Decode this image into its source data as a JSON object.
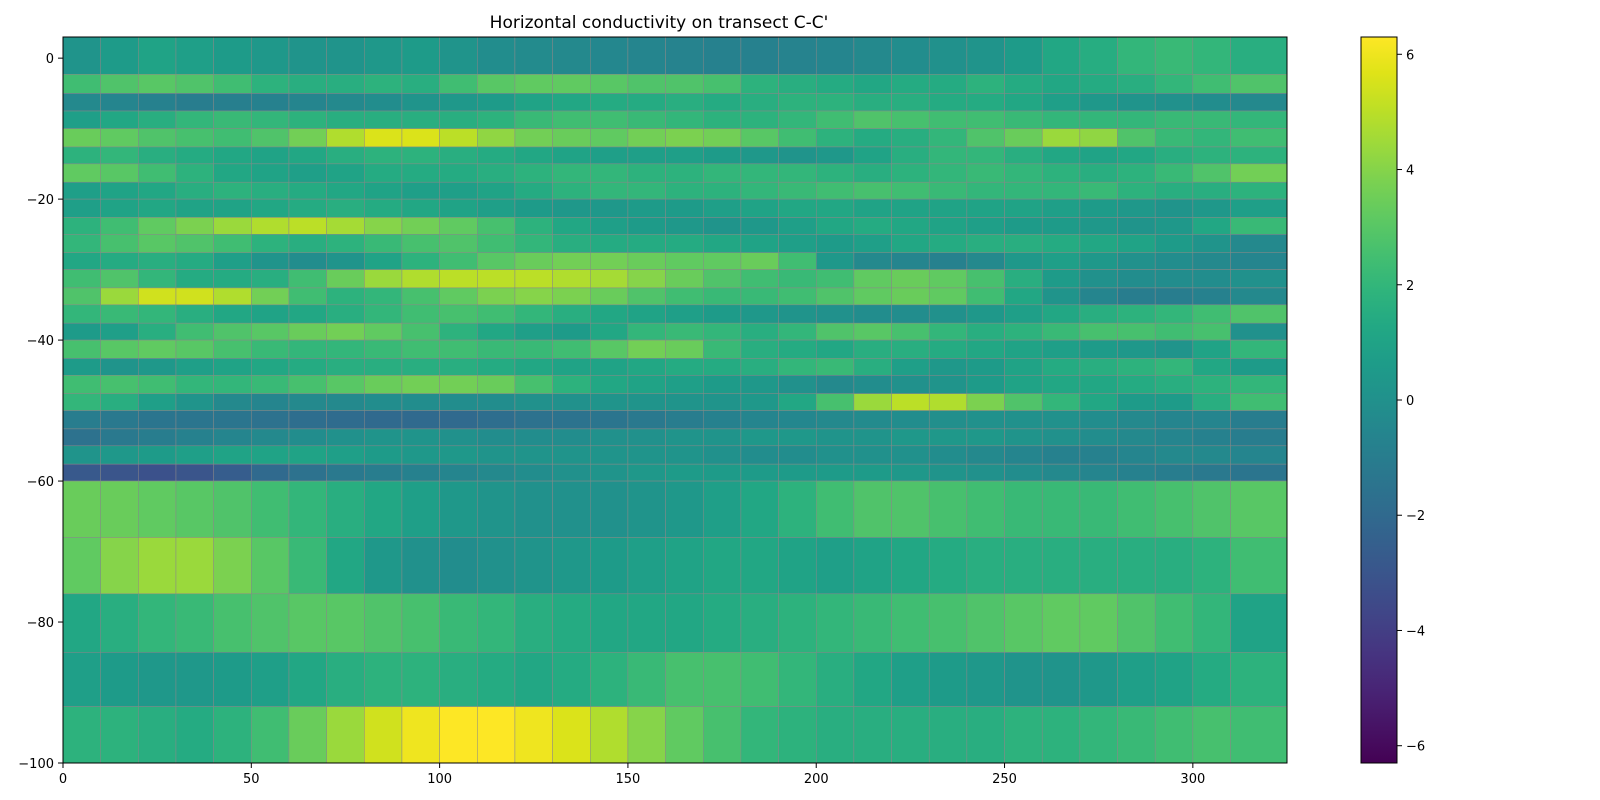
{
  "chart_data": {
    "type": "heatmap",
    "title": "Horizontal conductivity on transect C-C'",
    "xlabel": "",
    "ylabel": "",
    "xlim": [
      0,
      325
    ],
    "ylim": [
      -100,
      3
    ],
    "x_ticks": [
      0,
      50,
      100,
      150,
      200,
      250,
      300
    ],
    "y_ticks": [
      0,
      -20,
      -40,
      -60,
      -80,
      -100
    ],
    "x_edges": [
      0,
      10,
      20,
      30,
      40,
      50,
      60,
      70,
      80,
      90,
      100,
      110,
      120,
      130,
      140,
      150,
      160,
      170,
      180,
      190,
      200,
      210,
      220,
      230,
      240,
      250,
      260,
      270,
      280,
      290,
      300,
      310,
      325
    ],
    "layer_edges": [
      3,
      -2.3,
      -5,
      -7.5,
      -10,
      -12.6,
      -15,
      -17.6,
      -20,
      -22.6,
      -25,
      -27.6,
      -30,
      -32.6,
      -35,
      -37.6,
      -40,
      -42.6,
      -45,
      -47.6,
      -50,
      -52.6,
      -55,
      -57.6,
      -60,
      -68,
      -76,
      -84.3,
      -92,
      -100
    ],
    "colorbar": {
      "colormap": "viridis",
      "vmin": -6.3,
      "vmax": 6.3,
      "ticks": [
        6,
        4,
        2,
        0,
        -2,
        -4,
        -6
      ],
      "tick_labels": [
        "6",
        "4",
        "2",
        "0",
        "−2",
        "−4",
        "−6"
      ]
    },
    "grid_color": "#888888",
    "values": [
      [
        0.2,
        0.6,
        1.0,
        0.8,
        0.6,
        0.4,
        0.2,
        0.2,
        0.4,
        0.6,
        0.2,
        -0.2,
        -0.3,
        -0.4,
        -0.5,
        -0.6,
        -0.7,
        -0.8,
        -0.8,
        -0.7,
        -0.6,
        -0.4,
        -0.2,
        0.0,
        0.2,
        0.6,
        1.2,
        1.5,
        2.0,
        2.2,
        2.0,
        1.6
      ],
      [
        2.4,
        2.8,
        3.0,
        2.8,
        2.4,
        1.8,
        1.6,
        1.6,
        1.8,
        1.6,
        2.4,
        3.0,
        3.2,
        3.2,
        3.0,
        2.8,
        2.8,
        2.6,
        1.8,
        1.6,
        1.4,
        1.2,
        1.4,
        1.4,
        1.8,
        1.4,
        1.2,
        1.4,
        1.6,
        2.0,
        2.4,
        2.8
      ],
      [
        -0.4,
        -0.6,
        -0.8,
        -1.0,
        -0.9,
        -0.8,
        -0.6,
        -0.4,
        -0.2,
        0.2,
        0.4,
        0.6,
        1.0,
        1.2,
        1.4,
        1.4,
        1.6,
        1.4,
        1.6,
        1.8,
        1.8,
        1.6,
        1.6,
        1.4,
        1.4,
        1.2,
        0.8,
        0.4,
        0.2,
        0.0,
        -0.2,
        -0.4
      ],
      [
        0.8,
        1.2,
        1.6,
        2.0,
        2.2,
        2.0,
        1.8,
        1.6,
        1.6,
        1.6,
        1.6,
        1.8,
        2.2,
        2.4,
        2.4,
        2.2,
        2.0,
        1.8,
        1.8,
        2.0,
        2.4,
        2.8,
        2.6,
        2.4,
        2.4,
        2.2,
        2.0,
        2.0,
        2.0,
        2.2,
        2.2,
        2.0
      ],
      [
        3.4,
        3.2,
        2.8,
        2.6,
        2.4,
        2.8,
        3.6,
        4.8,
        5.6,
        5.6,
        5.0,
        4.2,
        3.6,
        3.4,
        3.2,
        3.6,
        3.8,
        3.6,
        3.0,
        2.4,
        1.8,
        1.4,
        1.6,
        2.0,
        2.8,
        3.4,
        4.4,
        4.2,
        2.8,
        2.2,
        2.0,
        2.4
      ],
      [
        1.8,
        2.0,
        1.6,
        1.4,
        1.2,
        1.0,
        1.2,
        1.6,
        1.8,
        1.8,
        1.6,
        1.4,
        1.2,
        1.0,
        0.8,
        0.8,
        0.8,
        0.6,
        0.4,
        0.2,
        0.4,
        1.0,
        1.6,
        2.0,
        2.0,
        1.6,
        1.2,
        1.0,
        1.2,
        1.6,
        1.8,
        1.8
      ],
      [
        3.2,
        3.0,
        2.4,
        1.8,
        1.2,
        1.0,
        0.8,
        1.0,
        1.4,
        1.4,
        1.4,
        1.6,
        1.8,
        2.0,
        2.0,
        1.8,
        1.8,
        2.0,
        2.0,
        2.0,
        1.8,
        1.6,
        1.8,
        2.0,
        2.2,
        2.0,
        1.8,
        1.6,
        1.8,
        2.2,
        2.8,
        3.6
      ],
      [
        0.8,
        1.0,
        1.2,
        1.6,
        1.8,
        1.6,
        1.4,
        1.2,
        1.0,
        0.8,
        0.8,
        1.0,
        1.4,
        1.8,
        2.0,
        2.0,
        1.8,
        1.8,
        2.0,
        2.2,
        2.4,
        2.6,
        2.4,
        2.2,
        2.0,
        2.0,
        2.0,
        2.2,
        1.8,
        1.6,
        1.6,
        1.8
      ],
      [
        0.8,
        1.0,
        1.2,
        1.0,
        1.0,
        1.2,
        1.4,
        1.6,
        1.4,
        1.2,
        1.0,
        0.8,
        0.6,
        0.4,
        0.4,
        0.6,
        0.6,
        0.8,
        1.0,
        1.2,
        1.2,
        1.0,
        1.0,
        1.0,
        1.0,
        1.0,
        0.8,
        0.6,
        0.4,
        0.2,
        0.4,
        0.8
      ],
      [
        1.8,
        2.4,
        3.2,
        3.8,
        4.4,
        4.8,
        5.0,
        4.6,
        4.0,
        3.6,
        3.2,
        2.6,
        1.8,
        1.2,
        0.8,
        0.6,
        0.4,
        0.2,
        0.4,
        0.8,
        1.2,
        1.4,
        1.2,
        1.0,
        0.8,
        0.6,
        0.6,
        0.4,
        0.2,
        0.4,
        1.2,
        2.2
      ],
      [
        2.0,
        2.6,
        3.0,
        2.8,
        2.4,
        1.8,
        1.6,
        1.8,
        2.2,
        2.6,
        2.8,
        2.4,
        2.0,
        1.6,
        1.4,
        1.4,
        1.4,
        1.2,
        1.0,
        0.8,
        0.6,
        0.8,
        1.2,
        1.4,
        1.6,
        1.6,
        1.4,
        1.2,
        1.0,
        0.6,
        0.2,
        -0.4
      ],
      [
        1.2,
        1.4,
        1.6,
        1.4,
        0.8,
        0.2,
        -0.2,
        0.2,
        1.0,
        1.8,
        2.4,
        3.0,
        3.4,
        3.6,
        3.6,
        3.4,
        3.2,
        3.2,
        3.4,
        2.4,
        0.4,
        -0.4,
        -0.6,
        -0.8,
        -0.4,
        0.4,
        0.8,
        0.4,
        0.0,
        -0.2,
        -0.4,
        -0.6
      ],
      [
        2.4,
        2.8,
        2.0,
        1.4,
        1.4,
        1.6,
        2.4,
        3.4,
        4.4,
        4.8,
        5.0,
        5.0,
        5.0,
        4.8,
        4.6,
        4.0,
        3.4,
        2.8,
        2.4,
        2.2,
        2.4,
        3.2,
        3.4,
        3.2,
        2.6,
        1.6,
        0.6,
        0.0,
        -0.2,
        -0.2,
        -0.2,
        0.0
      ],
      [
        2.8,
        4.4,
        5.4,
        5.4,
        4.8,
        3.6,
        2.4,
        1.8,
        2.0,
        2.6,
        3.2,
        3.8,
        4.0,
        3.8,
        3.4,
        2.8,
        2.4,
        2.2,
        2.2,
        2.4,
        2.8,
        3.2,
        3.4,
        3.2,
        2.4,
        1.2,
        0.2,
        -0.6,
        -1.0,
        -1.0,
        -0.8,
        -0.4
      ],
      [
        2.0,
        2.2,
        2.0,
        1.6,
        1.2,
        1.0,
        1.2,
        1.6,
        2.0,
        2.4,
        2.6,
        2.4,
        2.0,
        1.6,
        1.2,
        1.0,
        0.8,
        0.6,
        0.4,
        0.2,
        0.0,
        -0.2,
        -0.2,
        0.0,
        0.4,
        0.8,
        1.2,
        1.6,
        1.8,
        2.0,
        2.4,
        2.8
      ],
      [
        0.6,
        0.8,
        1.6,
        2.4,
        2.8,
        3.0,
        3.4,
        3.6,
        3.2,
        2.6,
        1.8,
        1.2,
        0.8,
        0.6,
        1.2,
        2.0,
        2.2,
        2.0,
        1.6,
        2.0,
        2.8,
        3.0,
        2.6,
        2.0,
        1.6,
        1.8,
        2.2,
        2.6,
        2.6,
        2.4,
        2.6,
        0.0
      ],
      [
        2.6,
        3.0,
        3.2,
        3.0,
        2.6,
        2.2,
        2.0,
        2.0,
        2.2,
        2.4,
        2.4,
        2.2,
        2.2,
        2.4,
        3.0,
        3.6,
        3.4,
        2.2,
        1.6,
        1.4,
        1.2,
        1.6,
        1.6,
        1.4,
        1.2,
        1.0,
        0.8,
        0.6,
        0.4,
        0.2,
        1.0,
        2.0
      ],
      [
        0.6,
        0.2,
        0.4,
        0.8,
        1.0,
        1.2,
        1.4,
        1.6,
        1.6,
        1.6,
        1.6,
        1.4,
        1.2,
        1.0,
        1.0,
        1.2,
        1.4,
        1.4,
        1.6,
        2.0,
        2.2,
        1.6,
        0.8,
        0.4,
        0.6,
        1.0,
        1.4,
        1.6,
        1.8,
        2.0,
        1.2,
        0.6
      ],
      [
        2.4,
        2.6,
        2.4,
        2.0,
        2.0,
        2.2,
        2.6,
        3.0,
        3.4,
        3.6,
        3.6,
        3.4,
        2.6,
        1.8,
        1.2,
        1.0,
        0.8,
        0.6,
        0.4,
        0.0,
        -0.4,
        -0.2,
        0.0,
        0.2,
        0.6,
        1.0,
        1.2,
        1.2,
        1.4,
        1.6,
        1.8,
        2.0
      ],
      [
        2.0,
        1.6,
        0.8,
        0.2,
        -0.4,
        -0.6,
        -0.4,
        -0.4,
        -0.2,
        -0.2,
        -0.2,
        -0.2,
        0.0,
        0.0,
        0.2,
        0.2,
        0.2,
        0.2,
        0.4,
        1.2,
        2.6,
        4.4,
        5.0,
        4.8,
        3.8,
        2.8,
        2.0,
        1.2,
        0.6,
        0.6,
        1.6,
        2.4
      ],
      [
        -1.0,
        -1.2,
        -1.4,
        -1.4,
        -1.4,
        -1.6,
        -1.8,
        -1.9,
        -2.0,
        -2.0,
        -2.0,
        -1.8,
        -1.6,
        -1.5,
        -1.4,
        -1.2,
        -1.0,
        -0.8,
        -0.6,
        -0.5,
        -0.4,
        -0.3,
        -0.2,
        -0.1,
        0.0,
        0.0,
        0.0,
        -0.2,
        -0.4,
        -0.6,
        -0.6,
        -1.0
      ],
      [
        -1.6,
        -1.2,
        -1.0,
        -0.8,
        -0.6,
        -0.4,
        -0.2,
        0.0,
        0.2,
        0.2,
        0.0,
        -0.2,
        -0.2,
        -0.2,
        0.0,
        0.0,
        0.2,
        0.2,
        0.4,
        0.4,
        0.2,
        0.2,
        0.4,
        0.4,
        0.4,
        0.2,
        0.0,
        -0.2,
        -0.4,
        -0.6,
        -0.8,
        -1.0
      ],
      [
        0.2,
        0.4,
        0.6,
        0.8,
        1.0,
        1.0,
        1.0,
        0.8,
        0.6,
        0.4,
        0.4,
        0.2,
        0.2,
        0.2,
        0.2,
        0.2,
        0.2,
        0.0,
        -0.2,
        -0.2,
        0.0,
        0.0,
        0.0,
        -0.2,
        -0.4,
        -0.6,
        -0.8,
        -0.8,
        -0.6,
        -0.4,
        -0.4,
        -0.6
      ],
      [
        -2.8,
        -3.0,
        -3.2,
        -3.0,
        -2.6,
        -2.0,
        -1.6,
        -1.2,
        -1.0,
        -0.8,
        -0.6,
        -0.4,
        -0.2,
        0.0,
        0.2,
        0.4,
        0.6,
        0.6,
        0.6,
        0.6,
        0.6,
        0.6,
        0.4,
        0.2,
        0.0,
        -0.2,
        -0.4,
        -0.6,
        -0.8,
        -1.0,
        -1.2,
        -1.4
      ],
      [
        3.4,
        3.4,
        3.2,
        3.0,
        2.8,
        2.4,
        2.0,
        1.6,
        1.2,
        0.8,
        0.4,
        0.2,
        0.0,
        0.0,
        0.0,
        0.2,
        0.4,
        0.8,
        1.2,
        1.8,
        2.4,
        2.8,
        2.8,
        2.6,
        2.4,
        2.2,
        2.2,
        2.2,
        2.4,
        2.6,
        2.8,
        3.0
      ],
      [
        3.2,
        4.0,
        4.4,
        4.4,
        3.8,
        3.0,
        2.2,
        1.2,
        0.4,
        0.0,
        -0.2,
        0.0,
        0.2,
        0.4,
        0.6,
        0.8,
        1.0,
        1.2,
        1.2,
        1.0,
        0.8,
        1.0,
        1.2,
        1.4,
        1.6,
        1.6,
        1.6,
        1.6,
        1.6,
        1.6,
        1.8,
        2.4
      ],
      [
        1.2,
        1.6,
        2.0,
        2.2,
        2.6,
        2.8,
        3.0,
        3.0,
        2.8,
        2.6,
        2.2,
        2.0,
        1.6,
        1.4,
        1.2,
        1.2,
        1.2,
        1.4,
        1.6,
        1.8,
        2.0,
        2.2,
        2.4,
        2.6,
        2.8,
        3.0,
        3.2,
        3.2,
        2.8,
        2.4,
        2.0,
        1.0
      ],
      [
        0.8,
        0.6,
        0.4,
        0.4,
        0.6,
        0.8,
        1.2,
        1.6,
        1.8,
        1.8,
        1.6,
        1.4,
        1.2,
        1.4,
        1.8,
        2.2,
        2.6,
        2.6,
        2.4,
        2.0,
        1.6,
        1.2,
        0.8,
        0.6,
        0.4,
        0.2,
        0.2,
        0.4,
        0.8,
        1.0,
        1.4,
        1.8
      ],
      [
        1.8,
        1.8,
        1.6,
        1.4,
        1.8,
        2.4,
        3.4,
        4.4,
        5.4,
        6.0,
        6.3,
        6.3,
        6.0,
        5.6,
        4.8,
        4.0,
        3.2,
        2.6,
        2.0,
        1.8,
        1.6,
        1.6,
        1.6,
        1.6,
        1.6,
        1.8,
        1.8,
        2.0,
        2.2,
        2.4,
        2.6,
        2.4
      ]
    ]
  }
}
